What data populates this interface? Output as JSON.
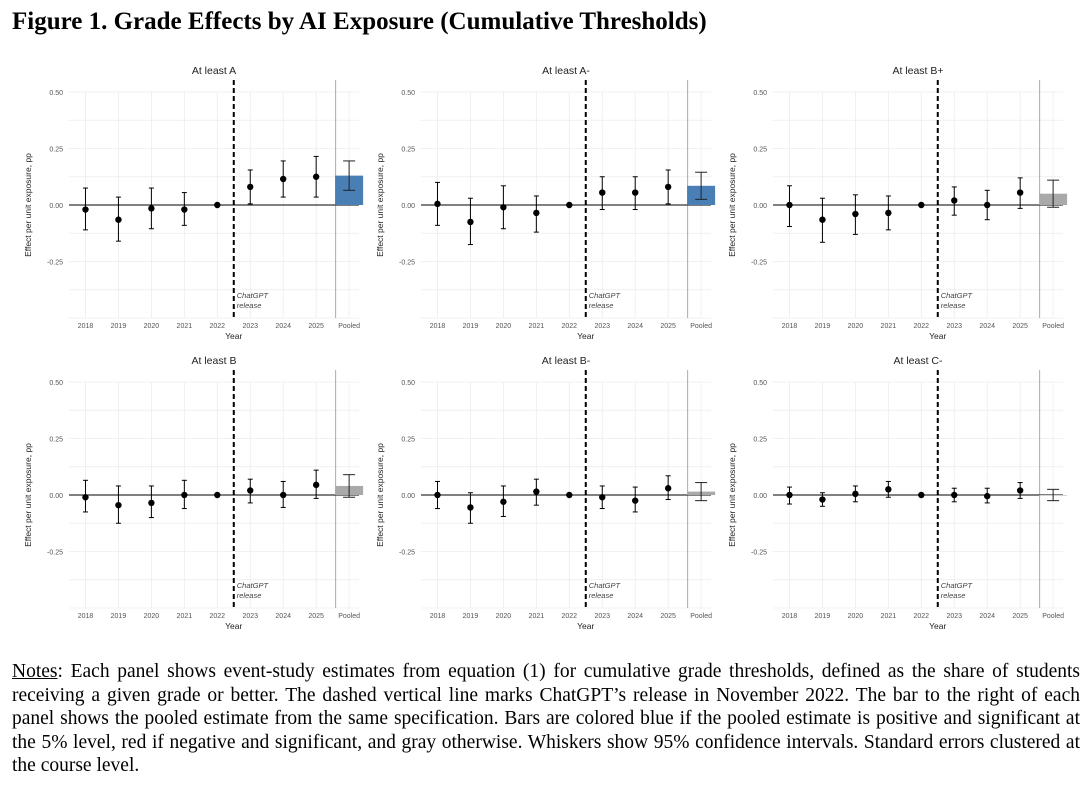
{
  "figure_title": "Figure 1. Grade Effects by AI Exposure (Cumulative Thresholds)",
  "notes_label": "Notes",
  "notes_text": ": Each panel shows event-study estimates from equation (1) for cumulative grade thresholds, defined as the share of students receiving a given grade or better. The dashed vertical line marks ChatGPT’s release in November 2022. The bar to the right of each panel shows the pooled estimate from the same specification. Bars are colored blue if the pooled estimate is positive and significant at the 5% level, red if negative and significant, and gray otherwise. Whiskers show 95% confidence intervals. Standard errors clustered at the course level.",
  "colors": {
    "positive_significant": "#4a7fb5",
    "not_significant": "#a9a9a9",
    "points": "#000000"
  },
  "chart_data": [
    {
      "type": "scatter",
      "title": "At least A",
      "xlabel": "Year",
      "ylabel": "Effect per unit exposure, pp",
      "categories": [
        "2018",
        "2019",
        "2020",
        "2021",
        "2022",
        "2023",
        "2024",
        "2025",
        "Pooled"
      ],
      "yticks": [
        "0.50",
        "0.25",
        "0.00",
        "-0.25"
      ],
      "ylim": [
        -0.5,
        0.5
      ],
      "grid": true,
      "annotation": [
        "ChatGPT",
        "release"
      ],
      "estimates": [
        -0.02,
        -0.065,
        -0.015,
        -0.02,
        0.0,
        0.08,
        0.115,
        0.125
      ],
      "ci_low": [
        -0.11,
        -0.16,
        -0.105,
        -0.09,
        0.0,
        0.005,
        0.035,
        0.035
      ],
      "ci_high": [
        0.075,
        0.035,
        0.075,
        0.055,
        0.0,
        0.155,
        0.195,
        0.215
      ],
      "pooled": {
        "value": 0.13,
        "ci": [
          0.065,
          0.195
        ],
        "color": "#4a7fb5"
      }
    },
    {
      "type": "scatter",
      "title": "At least A-",
      "xlabel": "Year",
      "ylabel": "Effect per unit exposure, pp",
      "categories": [
        "2018",
        "2019",
        "2020",
        "2021",
        "2022",
        "2023",
        "2024",
        "2025",
        "Pooled"
      ],
      "yticks": [
        "0.50",
        "0.25",
        "0.00",
        "-0.25"
      ],
      "ylim": [
        -0.5,
        0.5
      ],
      "grid": true,
      "annotation": [
        "ChatGPT",
        "release"
      ],
      "estimates": [
        0.005,
        -0.075,
        -0.01,
        -0.035,
        0.0,
        0.055,
        0.055,
        0.08
      ],
      "ci_low": [
        -0.09,
        -0.175,
        -0.105,
        -0.12,
        0.0,
        -0.02,
        -0.02,
        0.005
      ],
      "ci_high": [
        0.1,
        0.03,
        0.085,
        0.04,
        0.0,
        0.125,
        0.125,
        0.155
      ],
      "pooled": {
        "value": 0.085,
        "ci": [
          0.025,
          0.145
        ],
        "color": "#4a7fb5"
      }
    },
    {
      "type": "scatter",
      "title": "At least B+",
      "xlabel": "Year",
      "ylabel": "Effect per unit exposure, pp",
      "categories": [
        "2018",
        "2019",
        "2020",
        "2021",
        "2022",
        "2023",
        "2024",
        "2025",
        "Pooled"
      ],
      "yticks": [
        "0.50",
        "0.25",
        "0.00",
        "-0.25"
      ],
      "ylim": [
        -0.5,
        0.5
      ],
      "grid": true,
      "annotation": [
        "ChatGPT",
        "release"
      ],
      "estimates": [
        0.0,
        -0.065,
        -0.04,
        -0.035,
        0.0,
        0.02,
        0.0,
        0.055
      ],
      "ci_low": [
        -0.095,
        -0.165,
        -0.13,
        -0.11,
        0.0,
        -0.045,
        -0.065,
        -0.015
      ],
      "ci_high": [
        0.085,
        0.03,
        0.045,
        0.04,
        0.0,
        0.08,
        0.065,
        0.12
      ],
      "pooled": {
        "value": 0.05,
        "ci": [
          -0.01,
          0.11
        ],
        "color": "#a9a9a9"
      }
    },
    {
      "type": "scatter",
      "title": "At least B",
      "xlabel": "Year",
      "ylabel": "Effect per unit exposure, pp",
      "categories": [
        "2018",
        "2019",
        "2020",
        "2021",
        "2022",
        "2023",
        "2024",
        "2025",
        "Pooled"
      ],
      "yticks": [
        "0.50",
        "0.25",
        "0.00",
        "-0.25"
      ],
      "ylim": [
        -0.5,
        0.5
      ],
      "grid": true,
      "annotation": [
        "ChatGPT",
        "release"
      ],
      "estimates": [
        -0.01,
        -0.045,
        -0.035,
        0.0,
        0.0,
        0.02,
        0.0,
        0.045
      ],
      "ci_low": [
        -0.075,
        -0.125,
        -0.1,
        -0.06,
        0.0,
        -0.035,
        -0.055,
        -0.015
      ],
      "ci_high": [
        0.065,
        0.04,
        0.04,
        0.065,
        0.0,
        0.07,
        0.06,
        0.11
      ],
      "pooled": {
        "value": 0.04,
        "ci": [
          -0.01,
          0.09
        ],
        "color": "#a9a9a9"
      }
    },
    {
      "type": "scatter",
      "title": "At least B-",
      "xlabel": "Year",
      "ylabel": "Effect per unit exposure, pp",
      "categories": [
        "2018",
        "2019",
        "2020",
        "2021",
        "2022",
        "2023",
        "2024",
        "2025",
        "Pooled"
      ],
      "yticks": [
        "0.50",
        "0.25",
        "0.00",
        "-0.25"
      ],
      "ylim": [
        -0.5,
        0.5
      ],
      "grid": true,
      "annotation": [
        "ChatGPT",
        "release"
      ],
      "estimates": [
        0.0,
        -0.055,
        -0.03,
        0.015,
        0.0,
        -0.01,
        -0.025,
        0.03
      ],
      "ci_low": [
        -0.06,
        -0.125,
        -0.095,
        -0.045,
        0.0,
        -0.06,
        -0.075,
        -0.02
      ],
      "ci_high": [
        0.06,
        0.01,
        0.04,
        0.07,
        0.0,
        0.04,
        0.035,
        0.085
      ],
      "pooled": {
        "value": 0.015,
        "ci": [
          -0.025,
          0.055
        ],
        "color": "#a9a9a9"
      }
    },
    {
      "type": "scatter",
      "title": "At least C-",
      "xlabel": "Year",
      "ylabel": "Effect per unit exposure, pp",
      "categories": [
        "2018",
        "2019",
        "2020",
        "2021",
        "2022",
        "2023",
        "2024",
        "2025",
        "Pooled"
      ],
      "yticks": [
        "0.50",
        "0.25",
        "0.00",
        "-0.25"
      ],
      "ylim": [
        -0.5,
        0.5
      ],
      "grid": true,
      "annotation": [
        "ChatGPT",
        "release"
      ],
      "estimates": [
        0.0,
        -0.02,
        0.005,
        0.025,
        0.0,
        0.0,
        -0.005,
        0.02
      ],
      "ci_low": [
        -0.04,
        -0.05,
        -0.03,
        -0.01,
        0.0,
        -0.03,
        -0.035,
        -0.015
      ],
      "ci_high": [
        0.035,
        0.01,
        0.04,
        0.06,
        0.0,
        0.03,
        0.03,
        0.055
      ],
      "pooled": {
        "value": 0.0,
        "ci": [
          -0.025,
          0.025
        ],
        "color": "#a9a9a9"
      }
    }
  ]
}
